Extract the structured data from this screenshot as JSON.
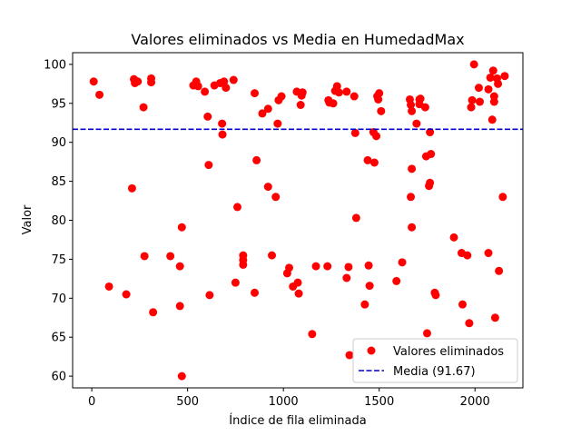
{
  "chart_data": {
    "type": "scatter",
    "title": "Valores eliminados vs Media en HumedadMax",
    "xlabel": "Índice de fila eliminada",
    "ylabel": "Valor",
    "xlim": [
      -100,
      2250
    ],
    "ylim": [
      58.5,
      101.5
    ],
    "xticks": [
      0,
      500,
      1000,
      1500,
      2000
    ],
    "yticks": [
      60,
      65,
      70,
      75,
      80,
      85,
      90,
      95,
      100
    ],
    "grid": false,
    "legend_position": "lower-right",
    "series": [
      {
        "name": "Valores eliminados",
        "color": "#ff0000",
        "marker": "circle",
        "points": [
          [
            10,
            97.8
          ],
          [
            40,
            96.1
          ],
          [
            90,
            71.5
          ],
          [
            180,
            70.5
          ],
          [
            210,
            84.1
          ],
          [
            220,
            98.1
          ],
          [
            225,
            97.6
          ],
          [
            240,
            97.8
          ],
          [
            270,
            94.5
          ],
          [
            275,
            75.4
          ],
          [
            310,
            98.2
          ],
          [
            310,
            97.7
          ],
          [
            320,
            68.2
          ],
          [
            410,
            75.4
          ],
          [
            460,
            74.1
          ],
          [
            460,
            69.0
          ],
          [
            470,
            79.1
          ],
          [
            470,
            60.0
          ],
          [
            530,
            97.3
          ],
          [
            545,
            97.8
          ],
          [
            555,
            97.2
          ],
          [
            590,
            96.5
          ],
          [
            605,
            93.3
          ],
          [
            610,
            87.1
          ],
          [
            615,
            70.4
          ],
          [
            640,
            97.3
          ],
          [
            670,
            97.6
          ],
          [
            680,
            92.4
          ],
          [
            682,
            91.0
          ],
          [
            690,
            97.8
          ],
          [
            700,
            97.0
          ],
          [
            740,
            98.0
          ],
          [
            750,
            72.0
          ],
          [
            760,
            81.7
          ],
          [
            790,
            75.5
          ],
          [
            790,
            74.9
          ],
          [
            790,
            74.3
          ],
          [
            850,
            96.3
          ],
          [
            850,
            70.7
          ],
          [
            860,
            87.7
          ],
          [
            890,
            93.7
          ],
          [
            920,
            84.3
          ],
          [
            920,
            94.3
          ],
          [
            940,
            75.5
          ],
          [
            960,
            83.0
          ],
          [
            970,
            92.4
          ],
          [
            975,
            95.4
          ],
          [
            990,
            95.9
          ],
          [
            1020,
            73.2
          ],
          [
            1030,
            73.9
          ],
          [
            1050,
            71.5
          ],
          [
            1070,
            96.5
          ],
          [
            1075,
            72.0
          ],
          [
            1080,
            70.6
          ],
          [
            1090,
            94.8
          ],
          [
            1095,
            96.0
          ],
          [
            1100,
            96.4
          ],
          [
            1150,
            65.4
          ],
          [
            1170,
            74.1
          ],
          [
            1230,
            74.1
          ],
          [
            1235,
            95.4
          ],
          [
            1240,
            95.1
          ],
          [
            1260,
            95.0
          ],
          [
            1270,
            96.6
          ],
          [
            1280,
            97.2
          ],
          [
            1290,
            96.4
          ],
          [
            1330,
            96.5
          ],
          [
            1330,
            72.6
          ],
          [
            1340,
            74.0
          ],
          [
            1345,
            62.7
          ],
          [
            1370,
            95.9
          ],
          [
            1375,
            91.2
          ],
          [
            1380,
            80.3
          ],
          [
            1425,
            69.2
          ],
          [
            1440,
            87.7
          ],
          [
            1445,
            74.2
          ],
          [
            1450,
            71.6
          ],
          [
            1470,
            91.3
          ],
          [
            1475,
            87.4
          ],
          [
            1485,
            90.8
          ],
          [
            1490,
            95.9
          ],
          [
            1495,
            95.5
          ],
          [
            1500,
            96.3
          ],
          [
            1510,
            94.0
          ],
          [
            1590,
            72.2
          ],
          [
            1620,
            74.6
          ],
          [
            1660,
            95.5
          ],
          [
            1665,
            94.8
          ],
          [
            1670,
            94.0
          ],
          [
            1670,
            86.6
          ],
          [
            1665,
            83.0
          ],
          [
            1670,
            79.1
          ],
          [
            1695,
            92.4
          ],
          [
            1710,
            95.5
          ],
          [
            1710,
            94.9
          ],
          [
            1715,
            95.6
          ],
          [
            1740,
            94.5
          ],
          [
            1745,
            88.2
          ],
          [
            1750,
            65.5
          ],
          [
            1760,
            84.4
          ],
          [
            1765,
            84.8
          ],
          [
            1765,
            91.3
          ],
          [
            1770,
            88.5
          ],
          [
            1790,
            70.7
          ],
          [
            1795,
            70.4
          ],
          [
            1890,
            77.8
          ],
          [
            1930,
            75.8
          ],
          [
            1935,
            69.2
          ],
          [
            1960,
            75.5
          ],
          [
            1970,
            66.8
          ],
          [
            1980,
            94.5
          ],
          [
            1985,
            95.4
          ],
          [
            1995,
            100.0
          ],
          [
            2020,
            97.0
          ],
          [
            2025,
            95.2
          ],
          [
            2070,
            96.8
          ],
          [
            2070,
            75.8
          ],
          [
            2080,
            98.3
          ],
          [
            2090,
            92.9
          ],
          [
            2095,
            99.2
          ],
          [
            2100,
            95.9
          ],
          [
            2100,
            95.2
          ],
          [
            2105,
            67.5
          ],
          [
            2115,
            98.2
          ],
          [
            2120,
            97.5
          ],
          [
            2125,
            73.5
          ],
          [
            2145,
            83.0
          ],
          [
            2155,
            98.5
          ]
        ]
      },
      {
        "name": "Media (91.67)",
        "type": "hline",
        "value": 91.67,
        "color": "#0000cc",
        "linestyle": "dashed"
      }
    ]
  }
}
